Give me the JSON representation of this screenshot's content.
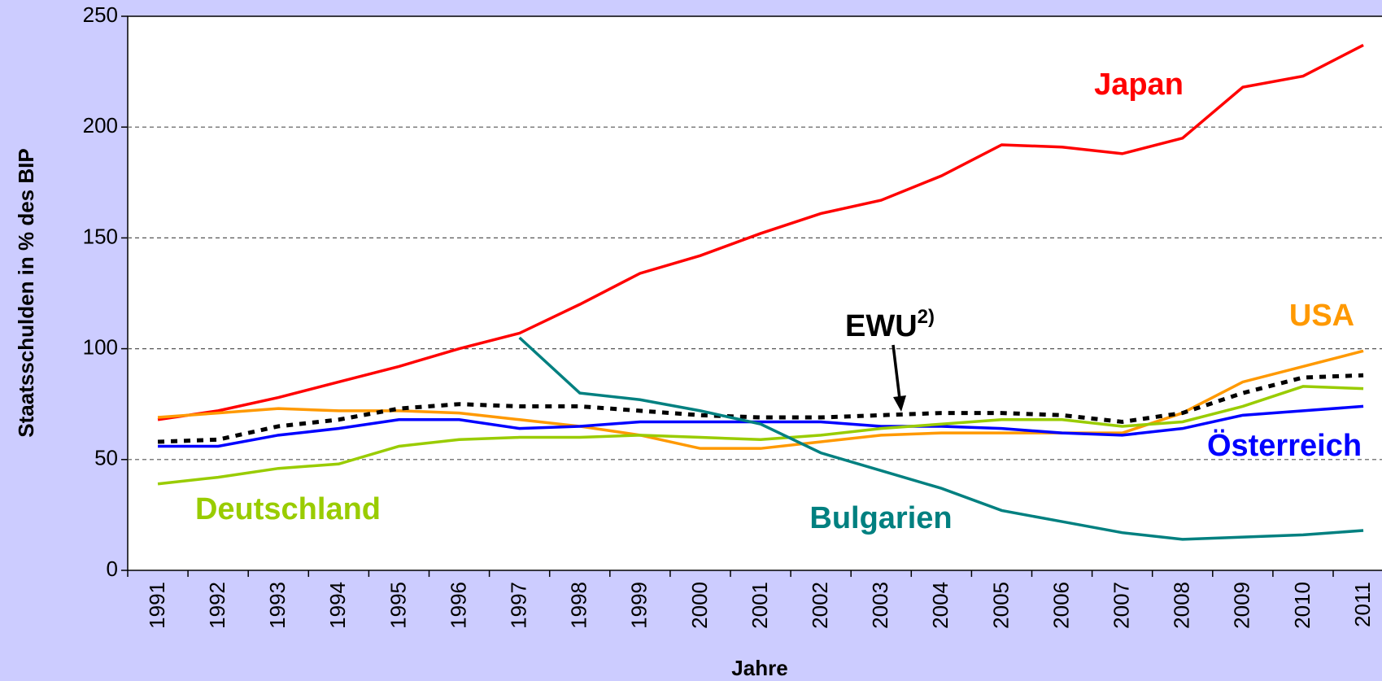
{
  "chart_data": {
    "type": "line",
    "x_label": "Jahre",
    "y_label": "Staatsschulden in % des BIP",
    "categories": [
      "1991",
      "1992",
      "1993",
      "1994",
      "1995",
      "1996",
      "1997",
      "1998",
      "1999",
      "2000",
      "2001",
      "2002",
      "2003",
      "2004",
      "2005",
      "2006",
      "2007",
      "2008",
      "2009",
      "2010",
      "2011"
    ],
    "series": [
      {
        "name": "Japan",
        "color": "#ff0000",
        "values": [
          68,
          72,
          78,
          85,
          92,
          100,
          107,
          120,
          134,
          142,
          152,
          161,
          167,
          178,
          192,
          191,
          188,
          195,
          218,
          223,
          237
        ]
      },
      {
        "name": "USA",
        "color": "#ff9900",
        "values": [
          69,
          71,
          73,
          72,
          72,
          71,
          68,
          65,
          61,
          55,
          55,
          58,
          61,
          62,
          62,
          62,
          62,
          71,
          85,
          92,
          99
        ]
      },
      {
        "name": "EWU",
        "superscript": "2)",
        "color": "#000000",
        "dashed": true,
        "values": [
          58,
          59,
          65,
          68,
          73,
          75,
          74,
          74,
          72,
          70,
          69,
          69,
          70,
          71,
          71,
          70,
          67,
          71,
          80,
          87,
          88
        ]
      },
      {
        "name": "Österreich",
        "color": "#0000ff",
        "values": [
          56,
          56,
          61,
          64,
          68,
          68,
          64,
          65,
          67,
          67,
          67,
          67,
          65,
          65,
          64,
          62,
          61,
          64,
          70,
          72,
          74
        ]
      },
      {
        "name": "Deutschland",
        "color": "#99cc00",
        "values": [
          39,
          42,
          46,
          48,
          56,
          59,
          60,
          60,
          61,
          60,
          59,
          61,
          64,
          66,
          68,
          68,
          65,
          67,
          74,
          83,
          82
        ]
      },
      {
        "name": "Bulgarien",
        "color": "#008080",
        "values": [
          null,
          null,
          null,
          null,
          null,
          null,
          105,
          80,
          77,
          72,
          66,
          53,
          45,
          37,
          27,
          22,
          17,
          14,
          15,
          16,
          18
        ]
      }
    ],
    "ylim": [
      0,
      250
    ],
    "yticks": [
      0,
      50,
      100,
      150,
      200,
      250
    ],
    "grid": true
  }
}
